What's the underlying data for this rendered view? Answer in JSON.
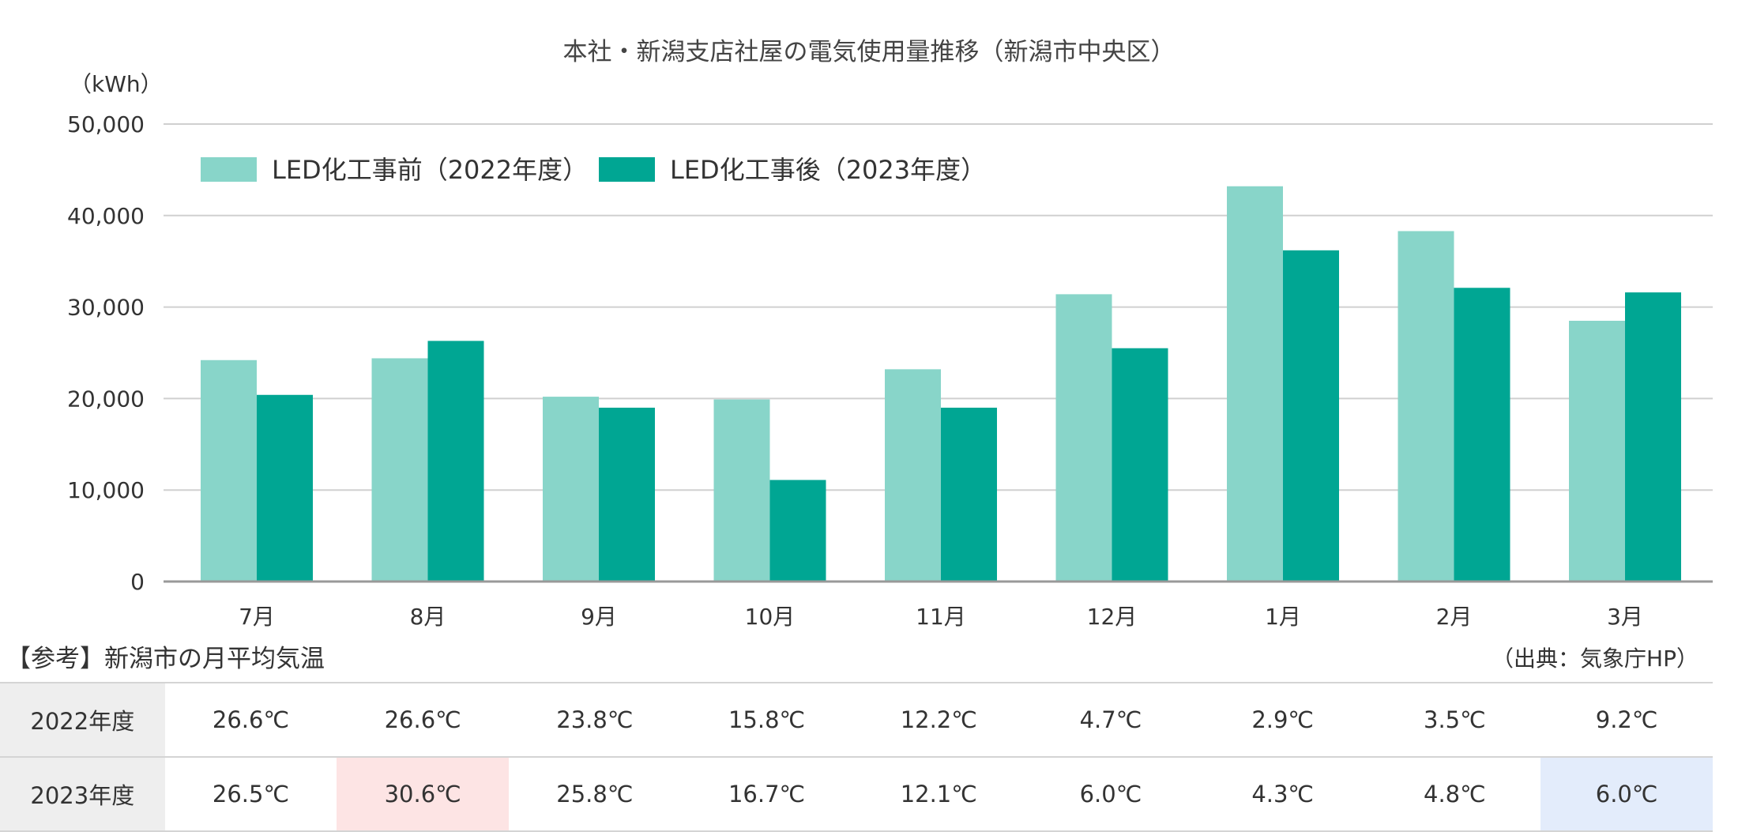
{
  "chart_data": {
    "type": "bar",
    "title": "本社・新潟支店社屋の電気使用量推移（新潟市中央区）",
    "unit": "（kWh）",
    "categories": [
      "7月",
      "8月",
      "9月",
      "10月",
      "11月",
      "12月",
      "1月",
      "2月",
      "3月"
    ],
    "series": [
      {
        "name": "LED化工事前（2022年度）",
        "color": "#88d5c9",
        "values": [
          24200,
          24400,
          20200,
          19900,
          23200,
          31400,
          43200,
          38300,
          28500
        ]
      },
      {
        "name": "LED化工事後（2023年度）",
        "color": "#00a693",
        "values": [
          20400,
          26300,
          19000,
          11100,
          19000,
          25500,
          36200,
          32100,
          31600
        ]
      }
    ],
    "ylim": [
      0,
      50000
    ],
    "yticks": [
      0,
      10000,
      20000,
      30000,
      40000,
      50000
    ],
    "ytick_labels": [
      "0",
      "10,000",
      "20,000",
      "30,000",
      "40,000",
      "50,000"
    ],
    "grid": true,
    "legend_position": "top-left"
  },
  "reference": {
    "title": "【参考】新潟市の月平均気温",
    "source": "（出典：気象庁HP）",
    "highlight_colors": {
      "hot": "#fde4e4",
      "cool": "#e3ecfb"
    },
    "rows": [
      {
        "label": "2022年度",
        "values": [
          "26.6℃",
          "26.6℃",
          "23.8℃",
          "15.8℃",
          "12.2℃",
          "4.7℃",
          "2.9℃",
          "3.5℃",
          "9.2℃"
        ]
      },
      {
        "label": "2023年度",
        "values": [
          "26.5℃",
          "30.6℃",
          "25.8℃",
          "16.7℃",
          "12.1℃",
          "6.0℃",
          "4.3℃",
          "4.8℃",
          "6.0℃"
        ]
      }
    ]
  }
}
